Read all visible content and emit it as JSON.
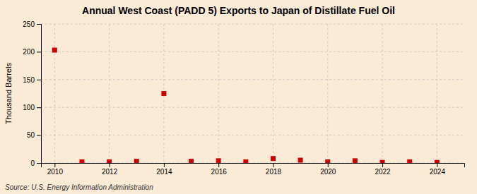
{
  "chart_data": {
    "type": "scatter",
    "title": "Annual West Coast (PADD 5) Exports to Japan of Distillate Fuel Oil",
    "y_label": "Thousand Barrels",
    "source": "Source: U.S. Energy Information Administration",
    "x": [
      2010,
      2011,
      2012,
      2013,
      2014,
      2015,
      2016,
      2017,
      2018,
      2019,
      2020,
      2021,
      2022,
      2023,
      2024
    ],
    "values": [
      203,
      2,
      2,
      3,
      125,
      3,
      4,
      2,
      8,
      5,
      2,
      4,
      1,
      2,
      1
    ],
    "color": "#cc0000",
    "marker": "square",
    "xlim": [
      2009.5,
      2025.0
    ],
    "ylim": [
      0,
      250
    ],
    "xticks": [
      2010,
      2012,
      2014,
      2016,
      2018,
      2020,
      2022,
      2024
    ],
    "yticks": [
      0,
      50,
      100,
      150,
      200,
      250
    ],
    "grid": true
  }
}
